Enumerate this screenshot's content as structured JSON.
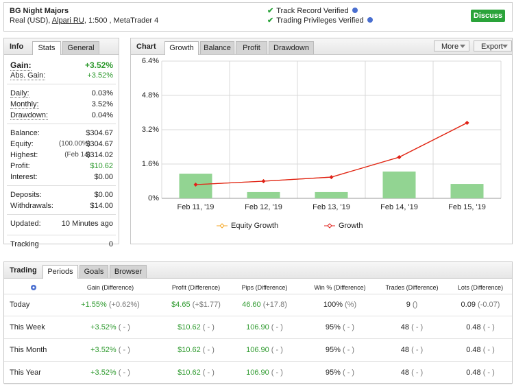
{
  "header": {
    "title": "BG Night Majors",
    "account": "Real (USD),",
    "broker": "Alpari RU",
    "details": ", 1:500 , MetaTrader 4",
    "verified": [
      "Track Record Verified",
      "Trading Privileges Verified"
    ],
    "button": "Discuss"
  },
  "info": {
    "title": "Info",
    "tabs": [
      "Stats",
      "General"
    ],
    "groups": [
      [
        {
          "label": "Gain:",
          "value": "+3.52%",
          "color": "#2e9a2e",
          "bold": true
        },
        {
          "label": "Abs. Gain:",
          "value": "+3.52%",
          "color": "#2e9a2e"
        }
      ],
      [
        {
          "label": "Daily:",
          "value": "0.03%"
        },
        {
          "label": "Monthly:",
          "value": "3.52%"
        },
        {
          "label": "Drawdown:",
          "value": "0.04%"
        }
      ],
      [
        {
          "label": "Balance:",
          "value": "$304.67"
        },
        {
          "label": "Equity:",
          "note": "(100.00%)",
          "value": "$304.67"
        },
        {
          "label": "Highest:",
          "note": "(Feb 14)",
          "value": "$314.02"
        },
        {
          "label": "Profit:",
          "value": "$10.62",
          "color": "#2e9a2e"
        },
        {
          "label": "Interest:",
          "value": "$0.00"
        }
      ],
      [
        {
          "label": "Deposits:",
          "value": "$0.00"
        },
        {
          "label": "Withdrawals:",
          "value": "$14.00"
        }
      ],
      [
        {
          "label": "Updated:",
          "value": "10 Minutes ago"
        }
      ],
      [
        {
          "label": "Tracking",
          "value": "0"
        }
      ]
    ]
  },
  "chart_panel": {
    "title": "Chart",
    "tabs": [
      "Growth",
      "Balance",
      "Profit",
      "Drawdown"
    ],
    "buttons": [
      "More",
      "Export"
    ]
  },
  "chart_data": {
    "type": "combo",
    "categories": [
      "Feb 11, '19",
      "Feb 12, '19",
      "Feb 13, '19",
      "Feb 14, '19",
      "Feb 15, '19"
    ],
    "series": [
      {
        "type": "bar",
        "color": "#92d492",
        "values": [
          1.15,
          0.29,
          0.29,
          1.25,
          0.67
        ]
      },
      {
        "type": "line",
        "name": "Equity Growth",
        "color": "#f5a623",
        "values": [
          0.64,
          0.8,
          0.99,
          1.92,
          3.52
        ]
      },
      {
        "type": "line",
        "name": "Growth",
        "color": "#e0201b",
        "values": [
          0.64,
          0.8,
          0.99,
          1.92,
          3.52
        ]
      }
    ],
    "ylim": [
      0,
      6.4
    ],
    "yticks": [
      {
        "value": 0,
        "label": "0%"
      },
      {
        "value": 1.6,
        "label": "1.6%"
      },
      {
        "value": 3.2,
        "label": "3.2%"
      },
      {
        "value": 4.8,
        "label": "4.8%"
      },
      {
        "value": 6.4,
        "label": "6.4%"
      }
    ],
    "grid": true
  },
  "trading": {
    "title": "Trading",
    "tabs": [
      "Periods",
      "Goals",
      "Browser"
    ],
    "columns": [
      "Gain (Difference)",
      "Profit (Difference)",
      "Pips (Difference)",
      "Win % (Difference)",
      "Trades (Difference)",
      "Lots (Difference)"
    ],
    "rows": [
      {
        "label": "Today",
        "cells": [
          [
            "+1.55%",
            "(+0.62%)"
          ],
          [
            "$4.65",
            "(+$1.77)"
          ],
          [
            "46.60",
            "(+17.8)"
          ],
          [
            "100%",
            "(%)"
          ],
          [
            "9",
            "()"
          ],
          [
            "0.09",
            "(-0.07)"
          ]
        ]
      },
      {
        "label": "This Week",
        "cells": [
          [
            "+3.52%",
            "( - )"
          ],
          [
            "$10.62",
            "( - )"
          ],
          [
            "106.90",
            "( - )"
          ],
          [
            "95%",
            "( - )"
          ],
          [
            "48",
            "( - )"
          ],
          [
            "0.48",
            "( - )"
          ]
        ]
      },
      {
        "label": "This Month",
        "cells": [
          [
            "+3.52%",
            "( - )"
          ],
          [
            "$10.62",
            "( - )"
          ],
          [
            "106.90",
            "( - )"
          ],
          [
            "95%",
            "( - )"
          ],
          [
            "48",
            "( - )"
          ],
          [
            "0.48",
            "( - )"
          ]
        ]
      },
      {
        "label": "This Year",
        "cells": [
          [
            "+3.52%",
            "( - )"
          ],
          [
            "$10.62",
            "( - )"
          ],
          [
            "106.90",
            "( - )"
          ],
          [
            "95%",
            "( - )"
          ],
          [
            "48",
            "( - )"
          ],
          [
            "0.48",
            "( - )"
          ]
        ]
      }
    ]
  }
}
